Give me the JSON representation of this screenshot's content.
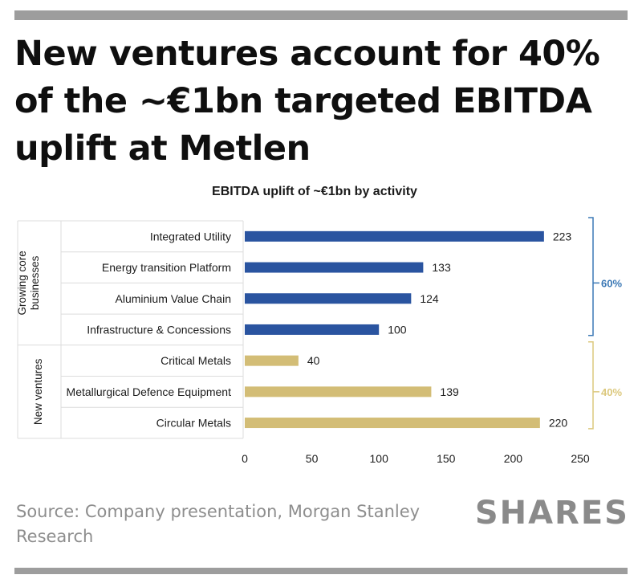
{
  "headline": "New ventures account for 40% of the ~€1bn targeted EBITDA uplift at Metlen",
  "source": "Source: Company presentation, Morgan Stanley Research",
  "brand": "SHARES",
  "colors": {
    "core": "#2a54a0",
    "ventures": "#d3bd76",
    "core_pct": "#3b78b5",
    "ventures_pct": "#dcc87d",
    "divider": "#dcdcdc"
  },
  "chart_data": {
    "type": "bar",
    "orientation": "horizontal",
    "title": "EBITDA uplift of ~€1bn by activity",
    "xlabel": "",
    "ylabel": "",
    "xlim": [
      0,
      250
    ],
    "xticks": [
      "0",
      "50",
      "100",
      "150",
      "200",
      "250"
    ],
    "grid": false,
    "legend": "none",
    "groups": [
      {
        "name": "Growing core businesses",
        "share": "60%",
        "categories": [
          "Integrated Utility",
          "Energy transition Platform",
          "Aluminium Value Chain",
          "Infrastructure & Concessions"
        ],
        "values": [
          223,
          133,
          124,
          100
        ]
      },
      {
        "name": "New ventures",
        "share": "40%",
        "categories": [
          "Critical Metals",
          "Metallurgical Defence Equipment",
          "Circular Metals"
        ],
        "values": [
          40,
          139,
          220
        ]
      }
    ]
  }
}
